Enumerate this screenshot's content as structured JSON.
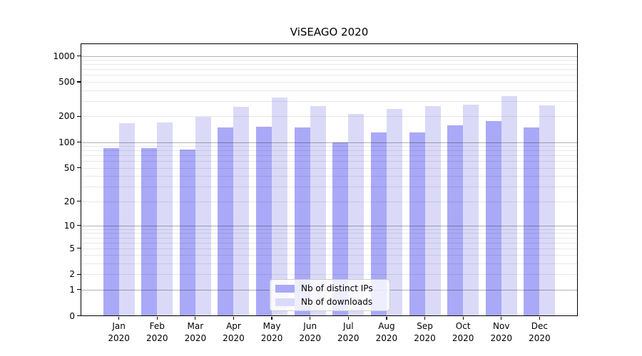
{
  "figure": {
    "background": "#ffffff"
  },
  "chart_data": {
    "type": "bar",
    "title": "ViSEAGO 2020",
    "x_year": "2020",
    "categories": [
      "Jan",
      "Feb",
      "Mar",
      "Apr",
      "May",
      "Jun",
      "Jul",
      "Aug",
      "Sep",
      "Oct",
      "Nov",
      "Dec"
    ],
    "series": [
      {
        "name": "Nb of distinct IPs",
        "color": "#a9a9f7",
        "values": [
          86,
          85,
          82,
          148,
          151,
          149,
          99,
          129,
          131,
          158,
          176,
          147
        ]
      },
      {
        "name": "Nb of downloads",
        "color": "#dadaf8",
        "values": [
          165,
          168,
          199,
          260,
          330,
          264,
          212,
          243,
          262,
          272,
          340,
          267
        ]
      }
    ],
    "yscale": "log1p",
    "ylim": [
      0,
      1385
    ],
    "yticks": [
      0,
      1,
      2,
      5,
      10,
      20,
      50,
      100,
      200,
      500,
      1000
    ],
    "y_major_gridlines": [
      1,
      10,
      100,
      1000
    ],
    "y_minor_gridlines": [
      2,
      3,
      4,
      5,
      6,
      7,
      8,
      9,
      20,
      30,
      40,
      50,
      60,
      70,
      80,
      90,
      200,
      300,
      400,
      500,
      600,
      700,
      800,
      900
    ],
    "xlabel": "",
    "ylabel": "",
    "grid": true,
    "legend_position": "inside lower-center"
  },
  "colors": {
    "axis": "#000000",
    "major_grid": "#b3b3b3",
    "minor_grid": "#ebebeb",
    "legend_border": "#cccccc",
    "background": "#ffffff"
  }
}
